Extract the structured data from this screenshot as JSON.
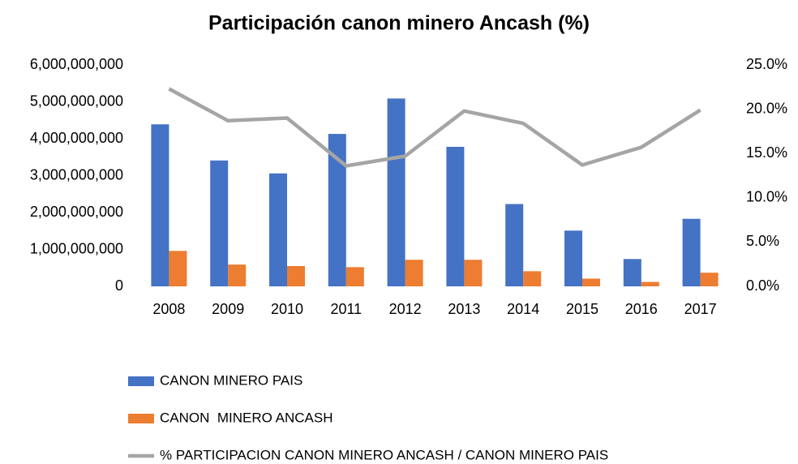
{
  "chart_data": {
    "type": "bar_line",
    "title": "Participación canon minero Ancash (%)",
    "categories": [
      "2008",
      "2009",
      "2010",
      "2011",
      "2012",
      "2013",
      "2014",
      "2015",
      "2016",
      "2017"
    ],
    "series": [
      {
        "name": "CANON MINERO PAIS",
        "type": "bar",
        "color": "#4472c4",
        "values": [
          4390000000,
          3410000000,
          3060000000,
          4130000000,
          5090000000,
          3780000000,
          2230000000,
          1510000000,
          740000000,
          1830000000
        ]
      },
      {
        "name": "CANON  MINERO ANCASH",
        "type": "bar",
        "color": "#ed7d31",
        "values": [
          960000000,
          590000000,
          550000000,
          520000000,
          720000000,
          720000000,
          410000000,
          210000000,
          120000000,
          370000000
        ]
      },
      {
        "name": "% PARTICIPACION CANON MINERO ANCASH / CANON MINERO PAIS",
        "type": "line",
        "axis": "y2",
        "color": "#a5a5a5",
        "values": [
          22.3,
          18.7,
          19.0,
          13.6,
          14.7,
          19.8,
          18.4,
          13.7,
          15.7,
          19.9
        ]
      }
    ],
    "ylim": [
      0,
      6000000000
    ],
    "yticks": [
      0,
      {
        "value": 1000000000,
        "label": "1,000,000,000"
      },
      {
        "value": 2000000000,
        "label": "2,000,000,000"
      },
      {
        "value": 3000000000,
        "label": "3,000,000,000"
      },
      {
        "value": 4000000000,
        "label": "4,000,000,000"
      },
      {
        "value": 5000000000,
        "label": "5,000,000,000"
      },
      {
        "value": 6000000000,
        "label": "6,000,000,000"
      }
    ],
    "y2lim": [
      0,
      25
    ],
    "y2ticks": [
      {
        "value": 0,
        "label": "0.0%"
      },
      {
        "value": 5,
        "label": "5.0%"
      },
      {
        "value": 10,
        "label": "10.0%"
      },
      {
        "value": 15,
        "label": "15.0%"
      },
      {
        "value": 20,
        "label": "20.0%"
      },
      {
        "value": 25,
        "label": "25.0%"
      }
    ],
    "grid": false,
    "legend": "bottom"
  }
}
